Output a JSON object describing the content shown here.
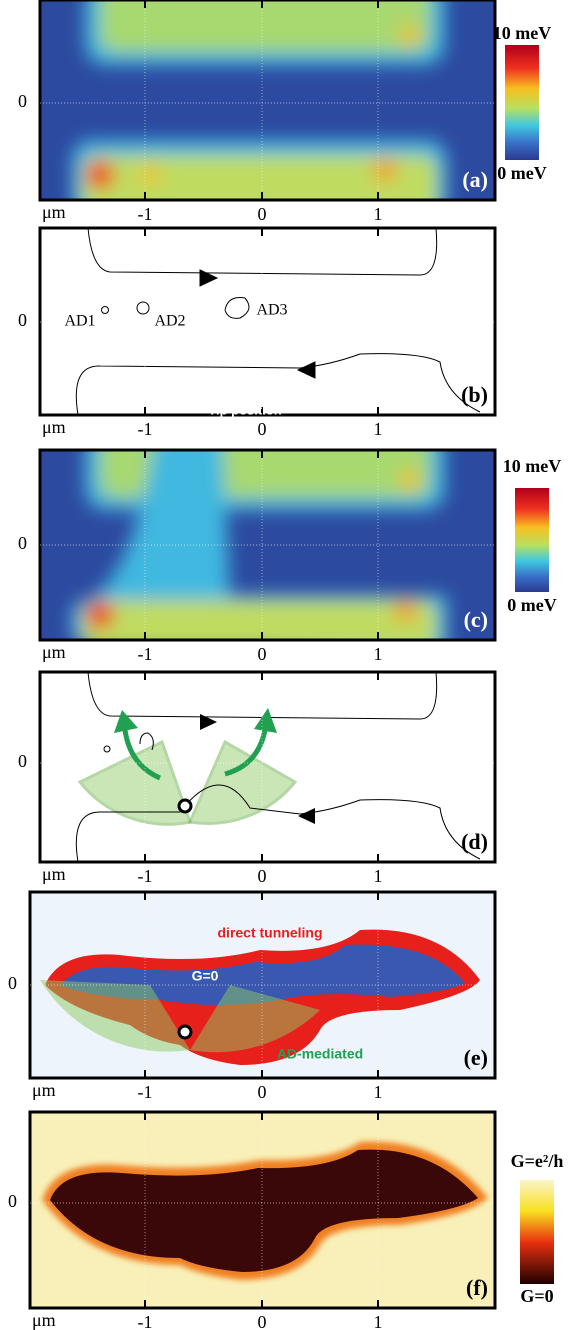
{
  "panels": [
    {
      "label": "(a)",
      "y_tick": "0",
      "x_unit": "μm",
      "x_ticks": [
        "-1",
        "0",
        "1"
      ],
      "colorbar": {
        "max": "10 meV",
        "min": "0 meV"
      }
    },
    {
      "label": "(b)",
      "y_tick": "0",
      "x_unit": "μm",
      "x_ticks": [
        "-1",
        "0",
        "1"
      ],
      "annotations": [
        "AD1",
        "AD2",
        "AD3"
      ]
    },
    {
      "label": "(c)",
      "y_tick": "0",
      "x_unit": "μm",
      "x_ticks": [
        "-1",
        "0",
        "1"
      ],
      "annotations": [
        "Tip position"
      ],
      "colorbar": {
        "max": "10 meV",
        "min": "0 meV"
      }
    },
    {
      "label": "(d)",
      "y_tick": "0",
      "x_unit": "μm",
      "x_ticks": [
        "-1",
        "0",
        "1"
      ]
    },
    {
      "label": "(e)",
      "y_tick": "0",
      "x_unit": "μm",
      "x_ticks": [
        "-1",
        "0",
        "1"
      ],
      "annotations": [
        "direct tunneling",
        "G=0",
        "AD-mediated"
      ]
    },
    {
      "label": "(f)",
      "y_tick": "0",
      "x_unit": "μm",
      "x_ticks": [
        "-1",
        "0",
        "1"
      ],
      "colorbar": {
        "max": "G=e²/h",
        "min": "G=0"
      }
    }
  ]
}
